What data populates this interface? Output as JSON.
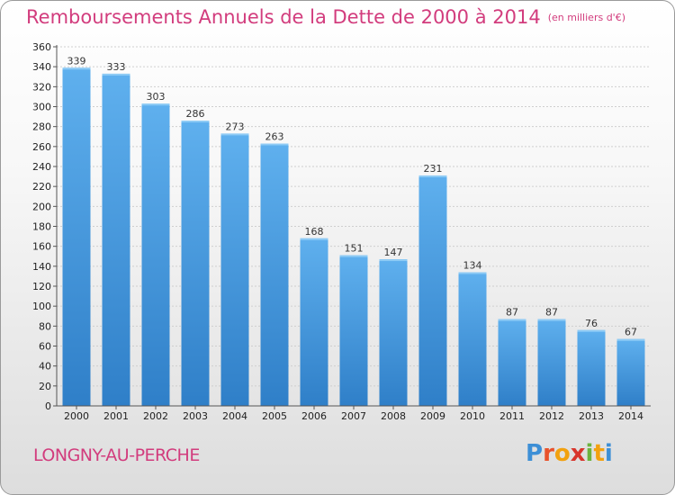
{
  "chart_data": {
    "type": "bar",
    "title": "Remboursements Annuels de la Dette de 2000 à 2014",
    "unit_note": "(en milliers d'€)",
    "categories": [
      "2000",
      "2001",
      "2002",
      "2003",
      "2004",
      "2005",
      "2006",
      "2007",
      "2008",
      "2009",
      "2010",
      "2011",
      "2012",
      "2013",
      "2014"
    ],
    "values": [
      339,
      333,
      303,
      286,
      273,
      263,
      168,
      151,
      147,
      231,
      134,
      87,
      87,
      76,
      67
    ],
    "ylim": [
      0,
      360
    ],
    "yticks": [
      0,
      20,
      40,
      60,
      80,
      100,
      120,
      140,
      160,
      180,
      200,
      220,
      240,
      260,
      280,
      300,
      320,
      340,
      360
    ],
    "grid": true,
    "bar_color": "#4a9de0",
    "title_color": "#d23c7d"
  },
  "location": "LONGNY-AU-PERCHE",
  "logo": {
    "letters": [
      "P",
      "r",
      "o",
      "x",
      "i",
      "t",
      "i"
    ],
    "colors": [
      "#3d8fd6",
      "#e8522b",
      "#f2a10f",
      "#d8352c",
      "#6cb33e",
      "#f2a10f",
      "#3d8fd6"
    ]
  }
}
